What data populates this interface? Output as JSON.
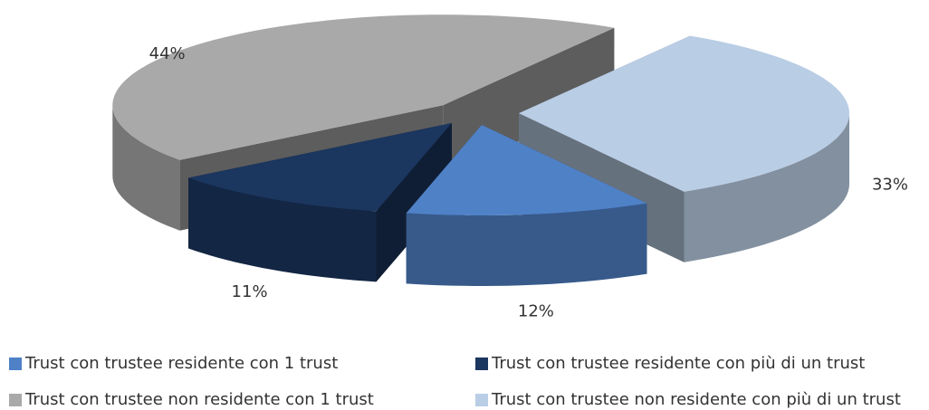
{
  "chart_data": {
    "type": "pie3d",
    "categories": [
      "Trust con trustee residente con 1 trust",
      "Trust con trustee residente con più di un trust",
      "Trust con trustee non residente con 1 trust",
      "Trust con trustee non residente con più di un trust"
    ],
    "values": [
      12,
      11,
      44,
      33
    ],
    "value_labels": [
      "12%",
      "11%",
      "44%",
      "33%"
    ],
    "colors": [
      "#4f81c7",
      "#1b365f",
      "#a9a9a9",
      "#b9cde5"
    ],
    "legend": "bottom"
  }
}
